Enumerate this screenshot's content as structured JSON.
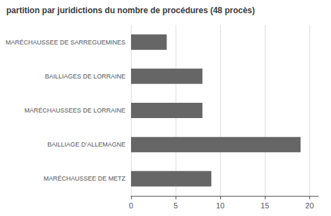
{
  "chart_data": {
    "type": "bar",
    "orientation": "horizontal",
    "title": "partition par juridictions du nombre de procédures (48 procès)",
    "categories": [
      "MARÉCHAUSSEE DE METZ",
      "BAILLIAGE D’ALLEMAGNE",
      "MARÉCHAUSSEES DE LORRAINE",
      "BAILLIAGES DE LORRAINE",
      "MARÉCHAUSSEE DE SARREGUEMINES"
    ],
    "values": [
      9,
      19,
      8,
      8,
      4
    ],
    "color": "#666666",
    "xlim": [
      0,
      21
    ],
    "xticks": [
      0,
      5,
      10,
      15,
      20
    ],
    "grid": true
  }
}
